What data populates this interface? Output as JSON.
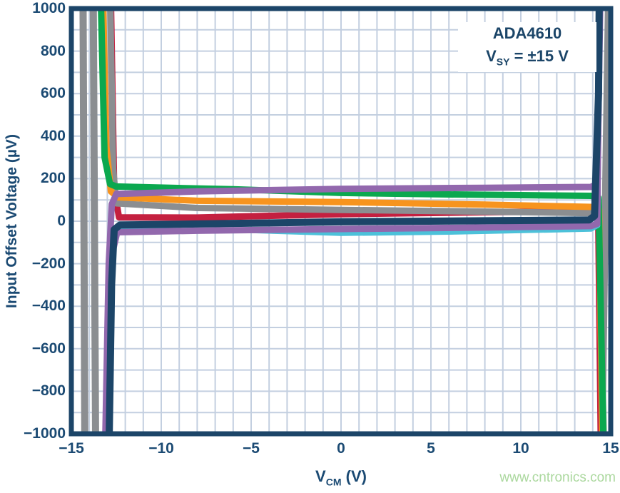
{
  "annotation": {
    "line1": "ADA4610",
    "line2_pre": "V",
    "line2_sub": "SY",
    "line2_post": " = ±15 V"
  },
  "watermark": "www.cntronics.com",
  "axes": {
    "x": {
      "title_pre": "V",
      "title_sub": "CM",
      "title_post": " (V)",
      "tick_labels": [
        {
          "label": "−15",
          "value": -15
        },
        {
          "label": "−10",
          "value": -10
        },
        {
          "label": "−5",
          "value": -5
        },
        {
          "label": "0",
          "value": 0
        },
        {
          "label": "5",
          "value": 5
        },
        {
          "label": "10",
          "value": 10
        },
        {
          "label": "15",
          "value": 15
        }
      ]
    },
    "y": {
      "title": "Input Offset Voltage (µV)",
      "tick_labels": [
        {
          "label": "1000",
          "value": 1000
        },
        {
          "label": "800",
          "value": 800
        },
        {
          "label": "600",
          "value": 600
        },
        {
          "label": "400",
          "value": 400
        },
        {
          "label": "200",
          "value": 200
        },
        {
          "label": "0",
          "value": 0
        },
        {
          "label": "−200",
          "value": -200
        },
        {
          "label": "−400",
          "value": -400
        },
        {
          "label": "−600",
          "value": -600
        },
        {
          "label": "−800",
          "value": -800
        },
        {
          "label": "−1000",
          "value": -1000
        }
      ]
    }
  },
  "colors": {
    "navy": "#1c4568",
    "gray": "#8b8e91",
    "orange": "#f7941e",
    "green": "#0ba84f",
    "red": "#c42040",
    "purple": "#9268ad",
    "cyan": "#4cc1d9",
    "grid": "#c3cfe0",
    "frame": "#1c4568",
    "text": "#1b4a73",
    "watermark": "#abd89e"
  },
  "chart_data": {
    "type": "line",
    "title": "ADA4610  VSY = ±15 V",
    "xlabel": "VCM (V)",
    "ylabel": "Input Offset Voltage (µV)",
    "xlim": [
      -15,
      15
    ],
    "ylim": [
      -1000,
      1000
    ],
    "x_grid_step": 1,
    "y_grid_step": 100,
    "grid": true,
    "legend": "none",
    "series": [
      {
        "name": "unit-gray-rail-left-1",
        "color": "gray",
        "width": 10,
        "points": [
          [
            -14.35,
            1050
          ],
          [
            -14.25,
            -1050
          ]
        ]
      },
      {
        "name": "unit-gray-rail-left-2",
        "color": "gray",
        "width": 10,
        "points": [
          [
            -13.78,
            1050
          ],
          [
            -13.65,
            -1050
          ]
        ]
      },
      {
        "name": "unit-gray-rail-right",
        "color": "gray",
        "width": 10,
        "points": [
          [
            14.88,
            1050
          ],
          [
            14.5,
            -1050
          ]
        ]
      },
      {
        "name": "unit-red",
        "color": "red",
        "width": 9,
        "points": [
          [
            -12.8,
            1050
          ],
          [
            -12.62,
            150
          ],
          [
            -12.35,
            18
          ],
          [
            -8,
            17
          ],
          [
            0,
            33
          ],
          [
            8,
            42
          ],
          [
            13.9,
            47
          ],
          [
            14.3,
            40
          ],
          [
            14.45,
            -1050
          ]
        ]
      },
      {
        "name": "unit-gray",
        "color": "gray",
        "width": 9,
        "points": [
          [
            -12.84,
            1050
          ],
          [
            -12.68,
            250
          ],
          [
            -12.5,
            84
          ],
          [
            -8,
            62
          ],
          [
            0,
            53
          ],
          [
            8,
            45
          ],
          [
            13.9,
            38
          ],
          [
            14.35,
            28
          ],
          [
            14.62,
            -1050
          ]
        ]
      },
      {
        "name": "unit-orange",
        "color": "orange",
        "width": 9,
        "points": [
          [
            -13.24,
            1050
          ],
          [
            -13.05,
            350
          ],
          [
            -12.8,
            140
          ],
          [
            -12.4,
            112
          ],
          [
            -8,
            96
          ],
          [
            0,
            90
          ],
          [
            8,
            78
          ],
          [
            13.9,
            67
          ],
          [
            14.35,
            55
          ],
          [
            14.54,
            -1050
          ]
        ]
      },
      {
        "name": "unit-green",
        "color": "green",
        "width": 9,
        "points": [
          [
            -13.36,
            1050
          ],
          [
            -13.15,
            300
          ],
          [
            -12.85,
            175
          ],
          [
            -12.5,
            163
          ],
          [
            -6,
            150
          ],
          [
            0,
            133
          ],
          [
            6,
            126
          ],
          [
            13.9,
            119
          ],
          [
            14.32,
            110
          ],
          [
            14.6,
            -1050
          ]
        ]
      },
      {
        "name": "unit-cyan",
        "color": "cyan",
        "width": 7,
        "points": [
          [
            -12.94,
            -1050
          ],
          [
            -12.76,
            -150
          ],
          [
            -12.4,
            -45
          ],
          [
            -6,
            -42
          ],
          [
            0,
            -58
          ],
          [
            6,
            -52
          ],
          [
            13.9,
            -38
          ],
          [
            14.28,
            -20
          ],
          [
            14.4,
            1050
          ]
        ]
      },
      {
        "name": "unit-purple-low",
        "color": "purple",
        "width": 9,
        "points": [
          [
            -13.02,
            -1050
          ],
          [
            -12.8,
            -180
          ],
          [
            -12.45,
            -52
          ],
          [
            -8,
            -45
          ],
          [
            0,
            -37
          ],
          [
            8,
            -30
          ],
          [
            13.9,
            -23
          ],
          [
            14.25,
            -12
          ],
          [
            14.38,
            1050
          ]
        ]
      },
      {
        "name": "unit-purple-high",
        "color": "purple",
        "width": 9,
        "points": [
          [
            -13.12,
            -1050
          ],
          [
            -12.92,
            -200
          ],
          [
            -12.75,
            80
          ],
          [
            -12.5,
            128
          ],
          [
            -8,
            140
          ],
          [
            0,
            152
          ],
          [
            8,
            157
          ],
          [
            13.9,
            161
          ],
          [
            14.25,
            175
          ],
          [
            14.42,
            1050
          ]
        ]
      },
      {
        "name": "unit-navy",
        "color": "navy",
        "width": 10,
        "points": [
          [
            -12.9,
            -1050
          ],
          [
            -12.76,
            -300
          ],
          [
            -12.62,
            -40
          ],
          [
            -12.3,
            -18
          ],
          [
            -8,
            -13
          ],
          [
            0,
            -3
          ],
          [
            8,
            2
          ],
          [
            13.8,
            6
          ],
          [
            14.1,
            25
          ],
          [
            14.32,
            600
          ],
          [
            14.36,
            1050
          ]
        ]
      }
    ]
  }
}
